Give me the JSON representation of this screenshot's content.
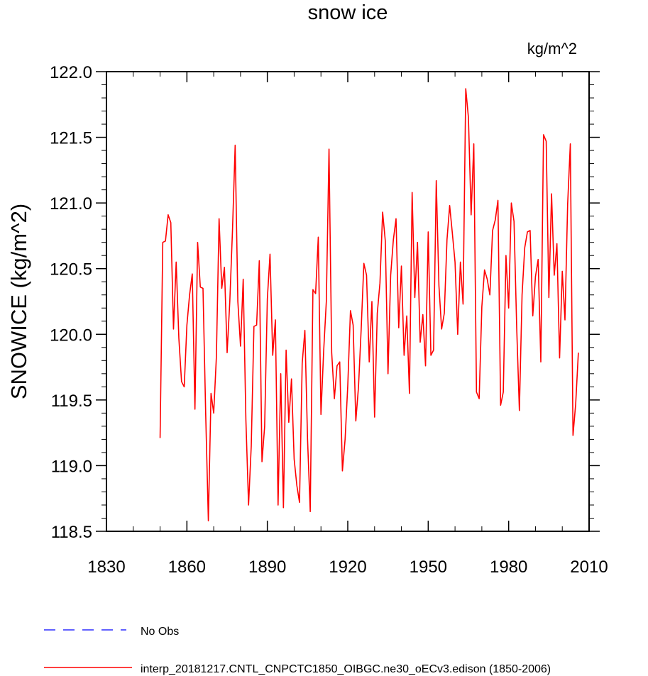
{
  "chart_data": {
    "type": "line",
    "title": "snow ice",
    "units": "kg/m^2",
    "ylabel": "SNOWICE  (kg/m^2)",
    "xlabel": "",
    "xlim": [
      1830,
      2010
    ],
    "ylim": [
      118.5,
      122.0
    ],
    "xticks": [
      1830,
      1860,
      1890,
      1920,
      1950,
      1980,
      2010
    ],
    "xtick_labels": [
      "1830",
      "1860",
      "1890",
      "1920",
      "1950",
      "1980",
      "2010"
    ],
    "yticks": [
      118.5,
      119.0,
      119.5,
      120.0,
      120.5,
      121.0,
      121.5,
      122.0
    ],
    "ytick_labels": [
      "118.5",
      "119.0",
      "119.5",
      "120.0",
      "120.5",
      "121.0",
      "121.5",
      "122.0"
    ],
    "grid": false,
    "legend": [
      {
        "label": "No Obs",
        "color": "#0000ff",
        "style": "dashed"
      },
      {
        "label": "interp_20181217.CNTL_CNPCTC1850_OIBGC.ne30_oECv3.edison (1850-2006)",
        "color": "#ff0000",
        "style": "solid"
      }
    ],
    "series": [
      {
        "name": "interp_20181217.CNTL_CNPCTC1850_OIBGC.ne30_oECv3.edison (1850-2006)",
        "color": "#ff0000",
        "x_start": 1850,
        "values": [
          119.21,
          120.7,
          120.71,
          120.91,
          120.85,
          120.04,
          120.55,
          119.97,
          119.64,
          119.6,
          120.07,
          120.3,
          120.46,
          119.43,
          120.7,
          120.36,
          120.35,
          119.4,
          118.58,
          119.55,
          119.4,
          119.83,
          120.88,
          120.35,
          120.51,
          119.86,
          120.25,
          120.79,
          121.44,
          120.25,
          119.91,
          120.42,
          119.35,
          118.7,
          119.15,
          120.06,
          120.07,
          120.56,
          119.03,
          119.3,
          120.27,
          120.61,
          119.84,
          120.11,
          118.7,
          119.7,
          118.68,
          119.88,
          119.33,
          119.66,
          119.05,
          118.85,
          118.72,
          119.78,
          120.03,
          119.2,
          118.65,
          120.34,
          120.31,
          120.74,
          119.39,
          119.87,
          120.25,
          121.41,
          119.86,
          119.51,
          119.76,
          119.79,
          118.96,
          119.2,
          119.61,
          120.18,
          120.07,
          119.34,
          119.6,
          120.04,
          120.54,
          120.45,
          119.79,
          120.25,
          119.37,
          120.16,
          120.39,
          120.93,
          120.71,
          119.7,
          120.45,
          120.72,
          120.88,
          120.05,
          120.52,
          119.84,
          120.14,
          119.55,
          121.08,
          120.28,
          120.7,
          119.94,
          120.15,
          119.76,
          120.78,
          119.84,
          119.88,
          121.17,
          120.37,
          120.04,
          120.16,
          120.72,
          120.98,
          120.77,
          120.55,
          120.0,
          120.55,
          120.23,
          121.87,
          121.65,
          120.91,
          121.45,
          119.56,
          119.51,
          120.21,
          120.49,
          120.42,
          120.3,
          120.79,
          120.87,
          121.02,
          119.46,
          119.56,
          120.6,
          120.2,
          121.0,
          120.86,
          120.05,
          119.42,
          120.3,
          120.66,
          120.78,
          120.79,
          120.14,
          120.44,
          120.57,
          119.79,
          121.52,
          121.47,
          120.28,
          121.07,
          120.45,
          120.69,
          119.82,
          120.48,
          120.11,
          120.99,
          121.45,
          119.23,
          119.47,
          119.86
        ]
      }
    ]
  }
}
